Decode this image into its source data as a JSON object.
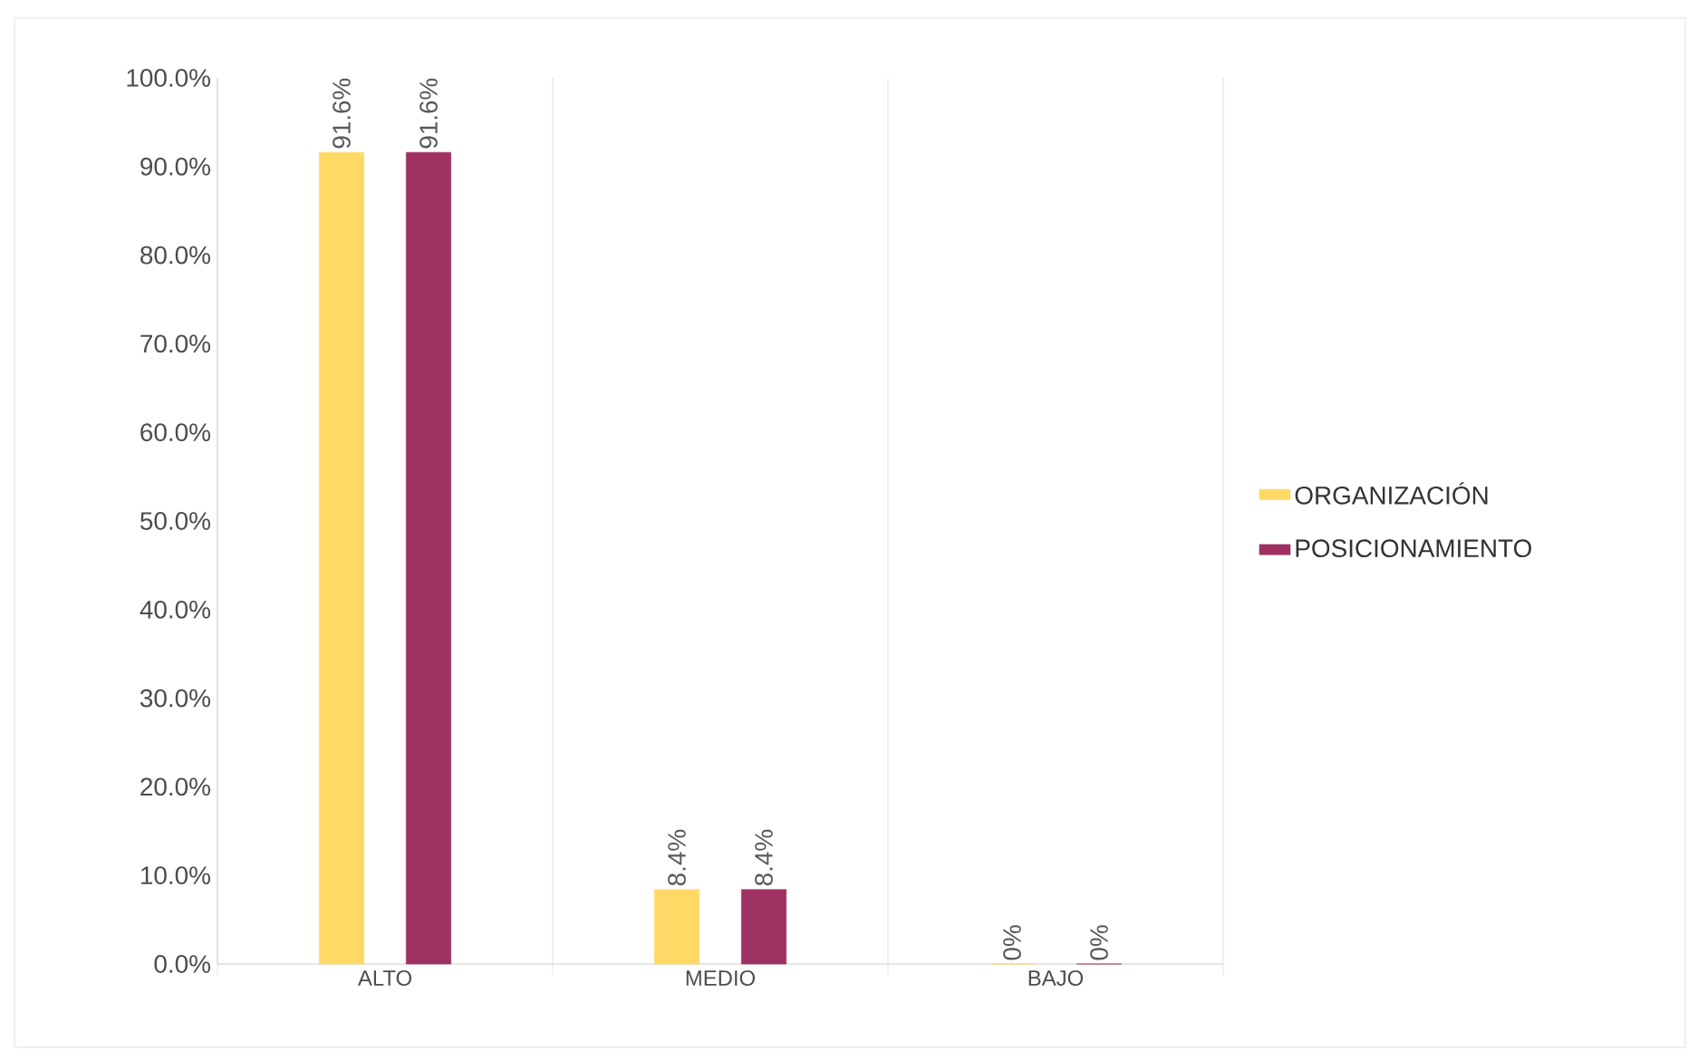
{
  "chart_data": {
    "type": "bar",
    "categories": [
      "ALTO",
      "MEDIO",
      "BAJO"
    ],
    "series": [
      {
        "name": "ORGANIZACIÓN",
        "color": "#ffd966",
        "values": [
          91.6,
          8.4,
          0
        ],
        "value_labels": [
          "91.6%",
          "8.4%",
          "0%"
        ]
      },
      {
        "name": "POSICIONAMIENTO",
        "color": "#9e3162",
        "values": [
          91.6,
          8.4,
          0
        ],
        "value_labels": [
          "91.6%",
          "8.4%",
          "0%"
        ]
      }
    ],
    "ylim": [
      0,
      100
    ],
    "yticks": [
      {
        "value": 0,
        "label": "0.0%"
      },
      {
        "value": 10,
        "label": "10.0%"
      },
      {
        "value": 20,
        "label": "20.0%"
      },
      {
        "value": 30,
        "label": "30.0%"
      },
      {
        "value": 40,
        "label": "40.0%"
      },
      {
        "value": 50,
        "label": "50.0%"
      },
      {
        "value": 60,
        "label": "60.0%"
      },
      {
        "value": 70,
        "label": "70.0%"
      },
      {
        "value": 80,
        "label": "80.0%"
      },
      {
        "value": 90,
        "label": "90.0%"
      },
      {
        "value": 100,
        "label": "100.0%"
      }
    ],
    "grid": "x",
    "legend": "right"
  }
}
